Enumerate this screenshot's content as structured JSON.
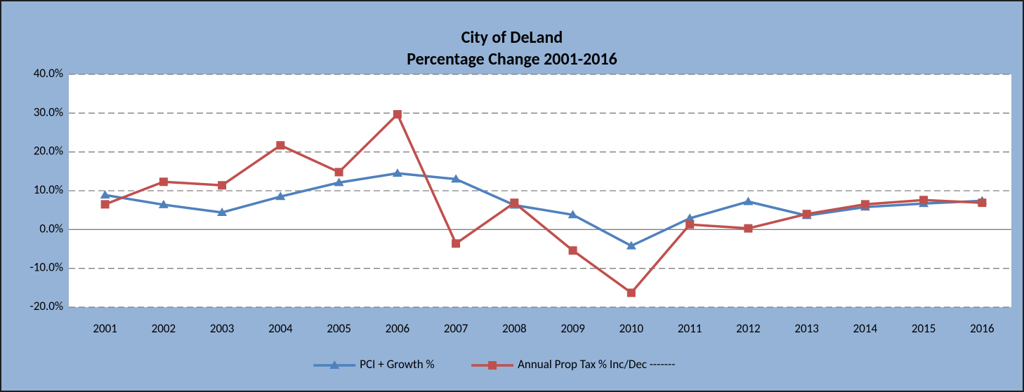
{
  "chart_data": {
    "type": "line",
    "title": "City of DeLand",
    "subtitle": "Percentage Change 2001-2016",
    "categories": [
      "2001",
      "2002",
      "2003",
      "2004",
      "2005",
      "2006",
      "2007",
      "2008",
      "2009",
      "2010",
      "2011",
      "2012",
      "2013",
      "2014",
      "2015",
      "2016"
    ],
    "series": [
      {
        "name": "PCI + Growth %",
        "color": "#4f81bd",
        "marker": "triangle",
        "values": [
          8.9,
          6.4,
          4.4,
          8.5,
          12.1,
          14.5,
          13.0,
          6.3,
          3.8,
          -4.2,
          2.9,
          7.2,
          3.6,
          5.8,
          6.7,
          7.4
        ]
      },
      {
        "name": "Annual Prop Tax % Inc/Dec -------",
        "color": "#c0504d",
        "marker": "square",
        "values": [
          6.5,
          12.3,
          11.4,
          21.7,
          14.8,
          29.7,
          -3.6,
          6.9,
          -5.4,
          -16.3,
          1.3,
          0.3,
          4.0,
          6.5,
          7.6,
          6.9
        ]
      }
    ],
    "ylim": [
      -20,
      40
    ],
    "yticks": [
      {
        "value": -20,
        "label": "-20.0%"
      },
      {
        "value": -10,
        "label": "-10.0%"
      },
      {
        "value": 0,
        "label": "0.0%"
      },
      {
        "value": 10,
        "label": "10.0%"
      },
      {
        "value": 20,
        "label": "20.0%"
      },
      {
        "value": 30,
        "label": "30.0%"
      },
      {
        "value": 40,
        "label": "40.0%"
      }
    ],
    "grid": true,
    "legend": "bottom"
  }
}
